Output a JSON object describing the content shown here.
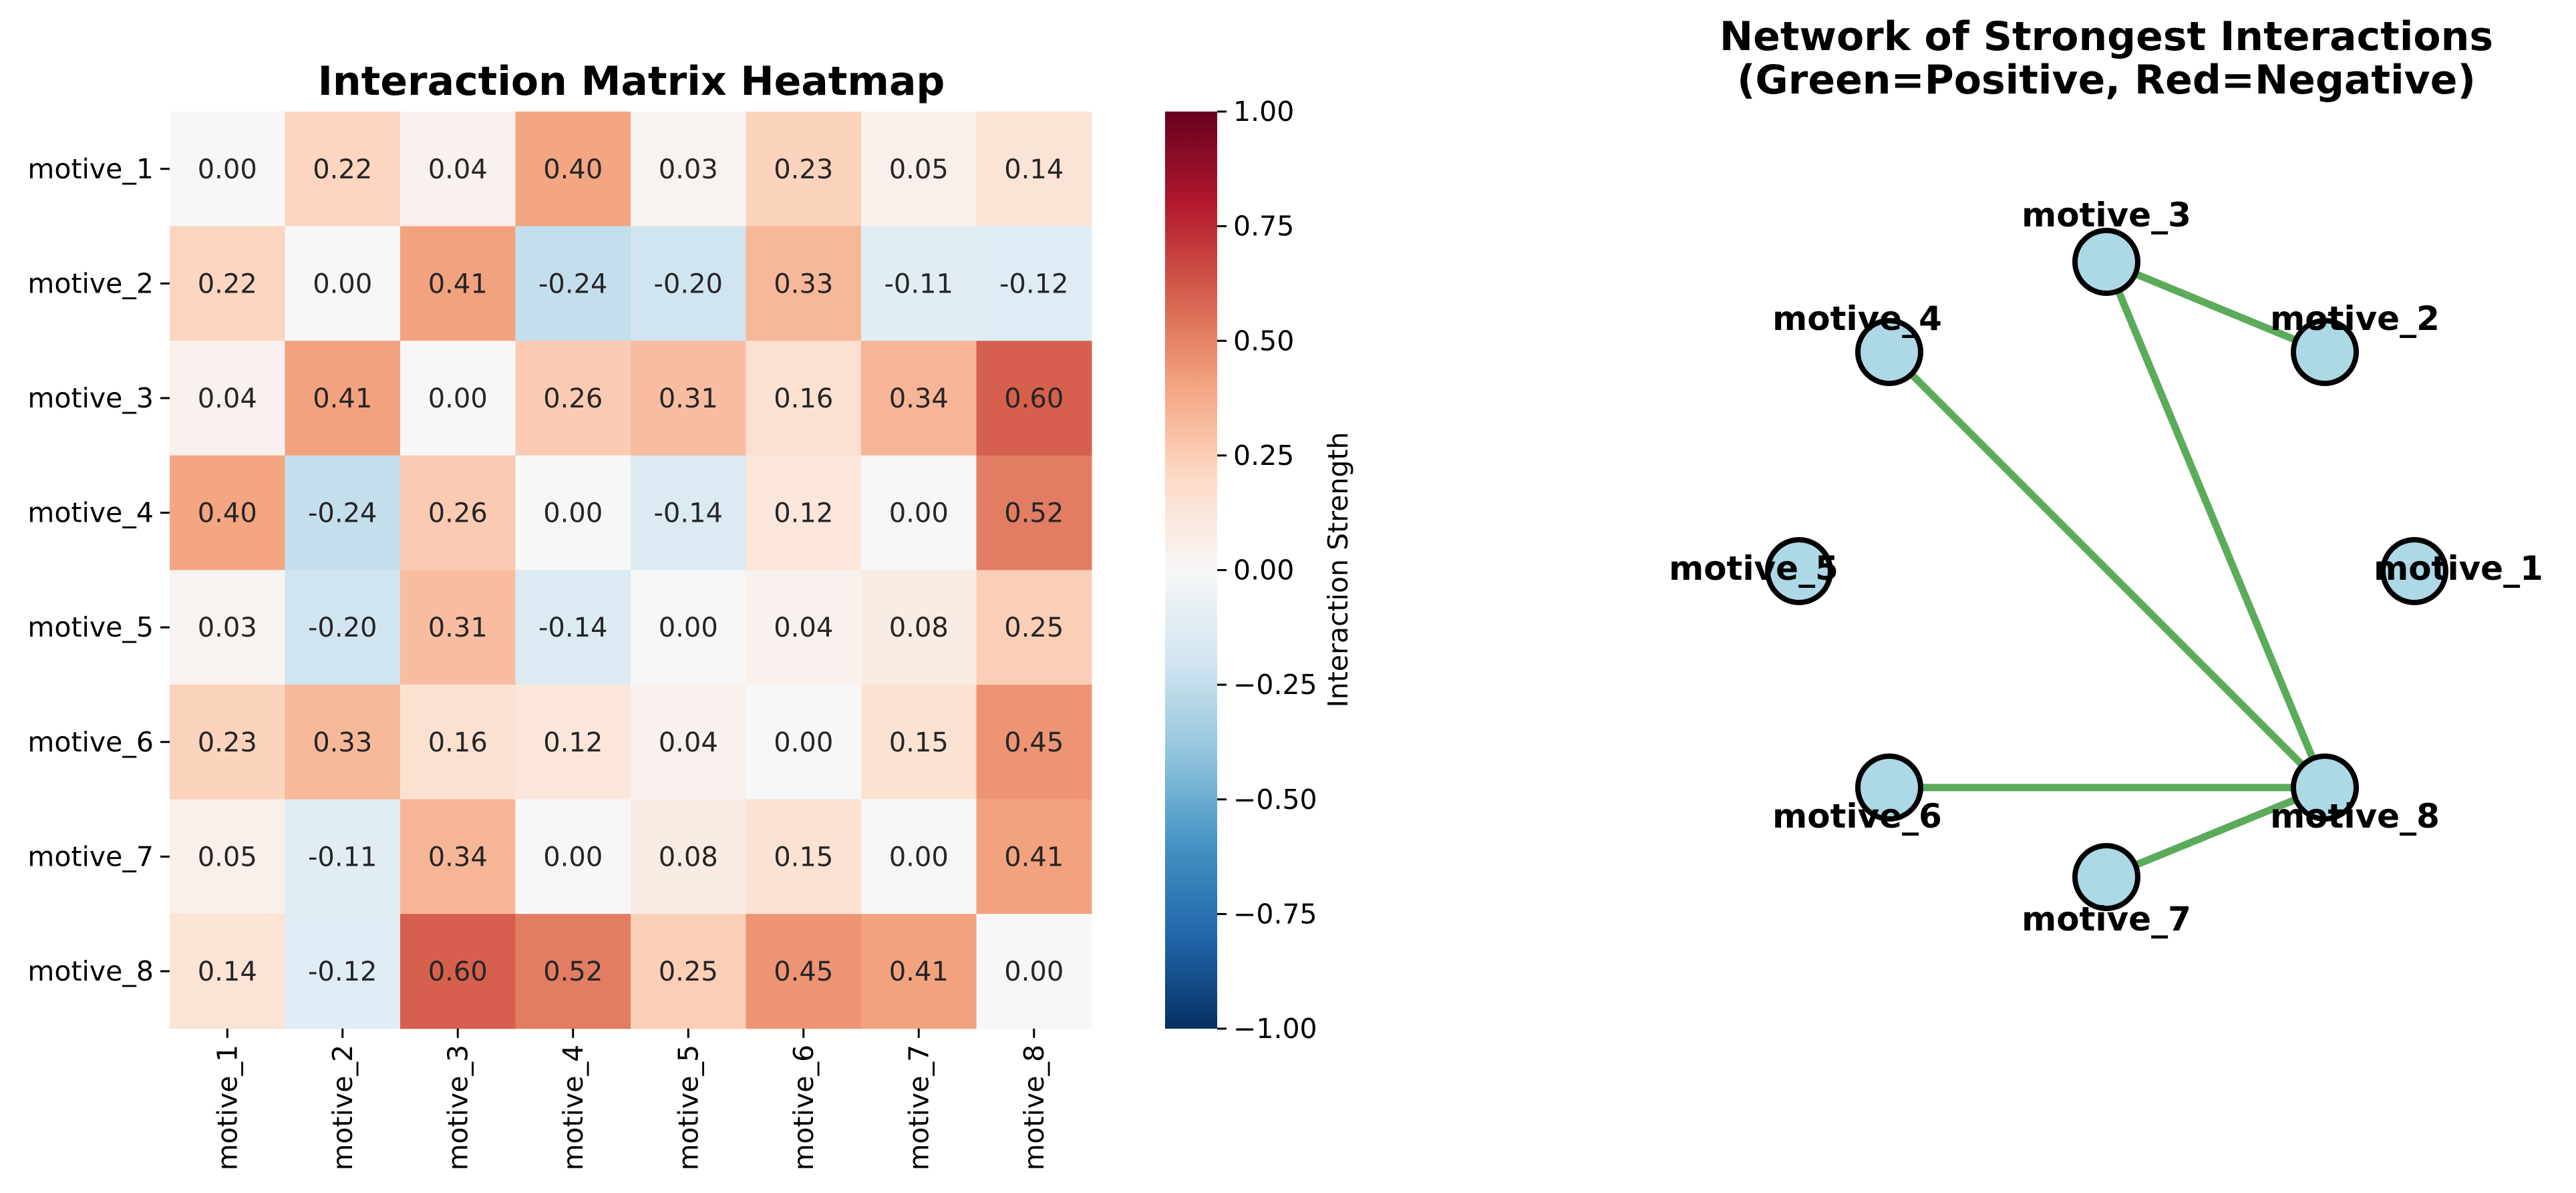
{
  "chart_data": [
    {
      "type": "heatmap",
      "title": "Interaction Matrix Heatmap",
      "rows": [
        "motive_1",
        "motive_2",
        "motive_3",
        "motive_4",
        "motive_5",
        "motive_6",
        "motive_7",
        "motive_8"
      ],
      "columns": [
        "motive_1",
        "motive_2",
        "motive_3",
        "motive_4",
        "motive_5",
        "motive_6",
        "motive_7",
        "motive_8"
      ],
      "values": [
        [
          0.0,
          0.22,
          0.04,
          0.4,
          0.03,
          0.23,
          0.05,
          0.14
        ],
        [
          0.22,
          0.0,
          0.41,
          -0.24,
          -0.2,
          0.33,
          -0.11,
          -0.12
        ],
        [
          0.04,
          0.41,
          0.0,
          0.26,
          0.31,
          0.16,
          0.34,
          0.6
        ],
        [
          0.4,
          -0.24,
          0.26,
          0.0,
          -0.14,
          0.12,
          0.0,
          0.52
        ],
        [
          0.03,
          -0.2,
          0.31,
          -0.14,
          0.0,
          0.04,
          0.08,
          0.25
        ],
        [
          0.23,
          0.33,
          0.16,
          0.12,
          0.04,
          0.0,
          0.15,
          0.45
        ],
        [
          0.05,
          -0.11,
          0.34,
          0.0,
          0.08,
          0.15,
          0.0,
          0.41
        ],
        [
          0.14,
          -0.12,
          0.6,
          0.52,
          0.25,
          0.45,
          0.41,
          0.0
        ]
      ],
      "colormap": "RdBu_r",
      "colorbar": {
        "label": "Interaction Strength",
        "range": [
          -1.0,
          1.0
        ],
        "ticks": [
          "1.00",
          "0.75",
          "0.50",
          "0.25",
          "0.00",
          "−0.25",
          "−0.50",
          "−0.75",
          "−1.00"
        ]
      },
      "colors": {
        "low": "#053061",
        "mid": "#f7f7f7",
        "high": "#67001f"
      }
    },
    {
      "type": "network",
      "title": "Network of Strongest Interactions\n(Green=Positive, Red=Negative)",
      "title_lines": [
        "Network of Strongest Interactions",
        "(Green=Positive, Red=Negative)"
      ],
      "nodes": [
        "motive_1",
        "motive_2",
        "motive_3",
        "motive_4",
        "motive_5",
        "motive_6",
        "motive_7",
        "motive_8"
      ],
      "edges": [
        {
          "source": "motive_2",
          "target": "motive_3",
          "sign": "positive"
        },
        {
          "source": "motive_3",
          "target": "motive_8",
          "sign": "positive"
        },
        {
          "source": "motive_4",
          "target": "motive_8",
          "sign": "positive"
        },
        {
          "source": "motive_6",
          "target": "motive_8",
          "sign": "positive"
        },
        {
          "source": "motive_7",
          "target": "motive_8",
          "sign": "positive"
        }
      ],
      "colors": {
        "positive_edge": "#5aab5a",
        "negative_edge": "#d62728",
        "node_fill": "#add8e6",
        "node_stroke": "#000000"
      }
    }
  ]
}
